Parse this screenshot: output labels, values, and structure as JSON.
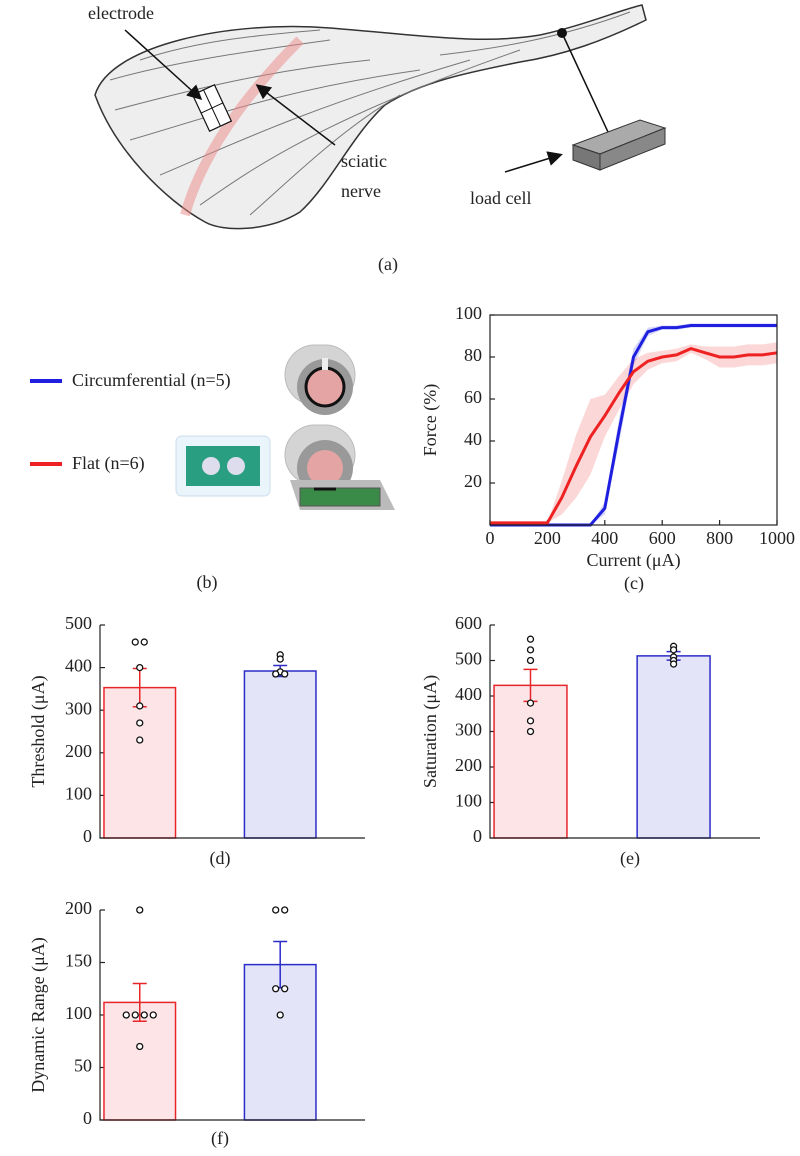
{
  "figure": {
    "panels": [
      "(a)",
      "(b)"
    ],
    "annotations": [
      "electrode",
      "sciatic",
      "nerve",
      "load cell"
    ]
  },
  "chart_data": [
    {
      "type": "line",
      "caption": "(c)",
      "xlabel": "Current (μA)",
      "ylabel": "Force (%)",
      "x": [
        0,
        50,
        100,
        150,
        200,
        250,
        300,
        350,
        400,
        450,
        500,
        550,
        600,
        650,
        700,
        750,
        800,
        850,
        900,
        950,
        1000
      ],
      "series": [
        {
          "name": "Circumferential (n=5)",
          "color": "#1f1fe0",
          "values": [
            0,
            0,
            0,
            0,
            0,
            0,
            0,
            0,
            8,
            45,
            80,
            92,
            94,
            94,
            95,
            95,
            95,
            95,
            95,
            95,
            95
          ],
          "errors": [
            0,
            0,
            0,
            0,
            0,
            0,
            0,
            0,
            3,
            6,
            4,
            2,
            1,
            1,
            1,
            1,
            1,
            1,
            1,
            1,
            1
          ]
        },
        {
          "name": "Flat (n=6)",
          "color": "#ee2222",
          "values": [
            1,
            1,
            1,
            1,
            1,
            13,
            28,
            42,
            52,
            63,
            73,
            78,
            80,
            81,
            84,
            82,
            80,
            80,
            81,
            81,
            82
          ],
          "errors": [
            0,
            0,
            0,
            0,
            0,
            8,
            15,
            18,
            10,
            8,
            6,
            4,
            3,
            3,
            2,
            3,
            5,
            5,
            5,
            5,
            5
          ]
        }
      ],
      "xlim": [
        0,
        1000
      ],
      "xticks": [
        0,
        200,
        400,
        600,
        800,
        1000
      ],
      "ylim": [
        0,
        100
      ],
      "yticks": [
        20,
        40,
        60,
        80,
        100
      ]
    },
    {
      "type": "bar",
      "caption": "(d)",
      "ylabel": "Threshold (μA)",
      "values": [
        353,
        392
      ],
      "errors": [
        45,
        13
      ],
      "colors": [
        "#e8262a",
        "#2c2cc8"
      ],
      "fills": [
        "#fde4e7",
        "#e4e4f8"
      ],
      "points": [
        [
          460,
          460,
          400,
          310,
          270,
          230
        ],
        [
          430,
          420,
          390,
          385,
          385
        ]
      ],
      "ylim": [
        0,
        500
      ],
      "yticks": [
        0,
        100,
        200,
        300,
        400,
        500
      ]
    },
    {
      "type": "bar",
      "caption": "(e)",
      "ylabel": "Saturation (μA)",
      "values": [
        430,
        513
      ],
      "errors": [
        45,
        12
      ],
      "colors": [
        "#e8262a",
        "#2c2cc8"
      ],
      "fills": [
        "#fde4e7",
        "#e4e4f8"
      ],
      "points": [
        [
          560,
          530,
          500,
          380,
          330,
          300
        ],
        [
          540,
          530,
          510,
          500,
          490
        ]
      ],
      "ylim": [
        0,
        600
      ],
      "yticks": [
        0,
        100,
        200,
        300,
        400,
        500,
        600
      ]
    },
    {
      "type": "bar",
      "caption": "(f)",
      "ylabel": "Dynamic Range (μA)",
      "values": [
        112,
        148
      ],
      "errors": [
        18,
        22
      ],
      "colors": [
        "#e8262a",
        "#2c2cc8"
      ],
      "fills": [
        "#fde4e7",
        "#e4e4f8"
      ],
      "points": [
        [
          200,
          100,
          100,
          100,
          100,
          70
        ],
        [
          200,
          200,
          125,
          125,
          100
        ]
      ],
      "ylim": [
        0,
        200
      ],
      "yticks": [
        0,
        50,
        100,
        150,
        200
      ]
    }
  ]
}
